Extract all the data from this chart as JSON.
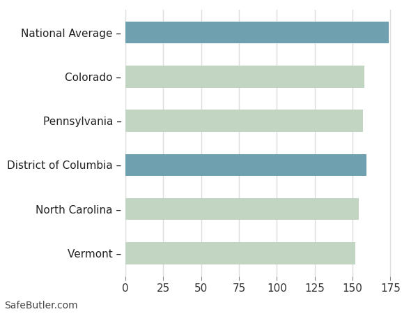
{
  "categories": [
    "Vermont",
    "North Carolina",
    "District of Columbia",
    "Pennsylvania",
    "Colorado",
    "National Average"
  ],
  "values": [
    152,
    154,
    159,
    157,
    158,
    174
  ],
  "bar_colors": [
    "#c2d5c2",
    "#c2d5c2",
    "#6fa0b0",
    "#c2d5c2",
    "#c2d5c2",
    "#6fa0b0"
  ],
  "background_color": "#ffffff",
  "xlim": [
    0,
    185
  ],
  "xticks": [
    0,
    25,
    50,
    75,
    100,
    125,
    150,
    175
  ],
  "grid_color": "#dddddd",
  "bar_height": 0.5,
  "footnote": "SafeButler.com",
  "footnote_fontsize": 10,
  "tick_fontsize": 11,
  "label_fontsize": 11
}
